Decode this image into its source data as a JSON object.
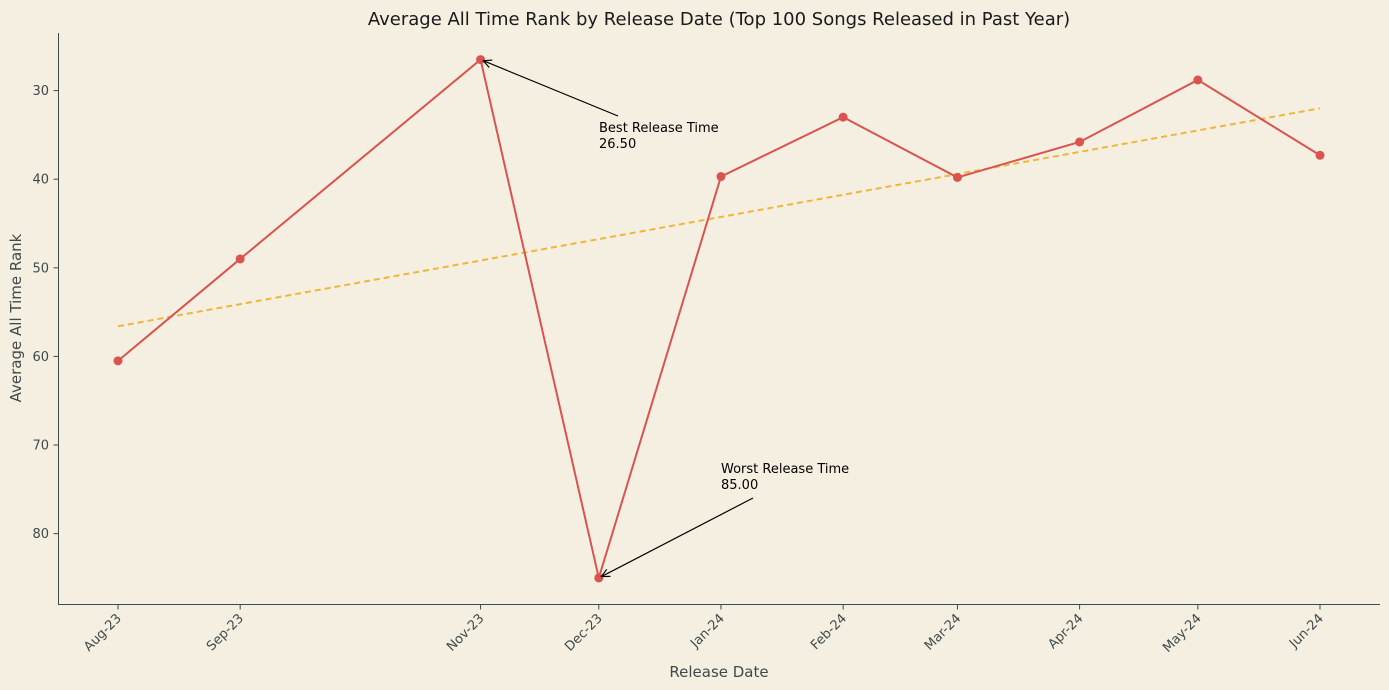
{
  "chart_data": {
    "type": "line",
    "title": "Average All Time Rank by Release Date (Top 100 Songs Released in Past Year)",
    "xlabel": "Release Date",
    "ylabel": "Average All Time Rank",
    "y_inverted": true,
    "ylim": [
      88.0,
      23.5
    ],
    "y_ticks": [
      30,
      40,
      50,
      60,
      70,
      80
    ],
    "x_tick_labels": [
      "Aug-23",
      "Sep-23",
      "Nov-23",
      "Dec-23",
      "Jan-24",
      "Feb-24",
      "Mar-24",
      "Apr-24",
      "May-24",
      "Jun-24"
    ],
    "grid": false,
    "series": [
      {
        "kind": "line-markers",
        "color": "#d9534f",
        "x": [
          "2023-08-01",
          "2023-09-01",
          "2023-11-01",
          "2023-12-01",
          "2024-01-01",
          "2024-02-01",
          "2024-03-01",
          "2024-04-01",
          "2024-05-01",
          "2024-06-01"
        ],
        "values": [
          60.5,
          49.0,
          26.5,
          85.0,
          39.7,
          33.0,
          39.8,
          35.8,
          28.8,
          37.3
        ]
      },
      {
        "kind": "trend-dashed",
        "color": "#f0b63a",
        "x": [
          "2023-08-01",
          "2024-06-01"
        ],
        "values": [
          56.6,
          32.0
        ]
      }
    ],
    "annotations": [
      {
        "label": "Best Release Time",
        "value": "26.50",
        "x": "2023-11-01",
        "y": 26.5
      },
      {
        "label": "Worst Release Time",
        "value": "85.00",
        "x": "2023-12-01",
        "y": 85.0
      }
    ]
  }
}
